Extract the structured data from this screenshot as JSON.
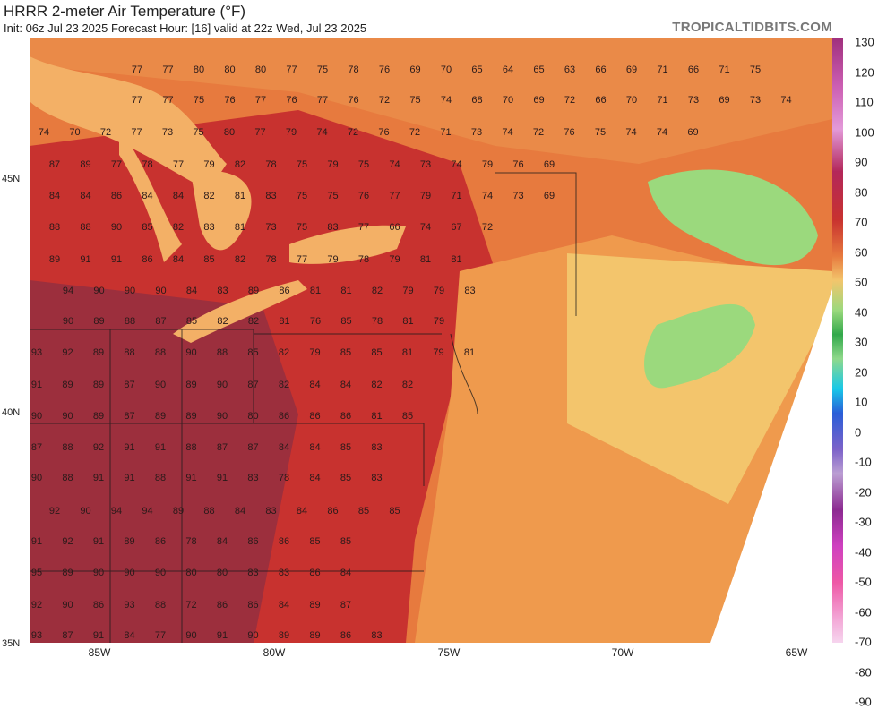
{
  "header": {
    "title": "HRRR 2-meter Air Temperature (°F)",
    "subtitle": "Init: 06z Jul 23 2025   Forecast Hour: [16]   valid at 22z Wed, Jul 23 2025",
    "brand": "TROPICALTIDBITS.COM"
  },
  "colorbar": {
    "labels": [
      "130",
      "120",
      "110",
      "100",
      "90",
      "80",
      "70",
      "60",
      "50",
      "40",
      "30",
      "20",
      "10",
      "0",
      "-10",
      "-20",
      "-30",
      "-40",
      "-50",
      "-60",
      "-70",
      "-80",
      "-90"
    ]
  },
  "axes": {
    "lat_labels": [
      "45N",
      "40N",
      "35N"
    ],
    "lon_labels": [
      "85W",
      "80W",
      "75W",
      "70W",
      "65W"
    ]
  },
  "station_values": {
    "rows": [
      [
        "77",
        "77",
        "80",
        "80",
        "80",
        "77",
        "75",
        "78",
        "76",
        "69",
        "70",
        "65",
        "64",
        "65",
        "63",
        "66",
        "69",
        "71",
        "66",
        "71",
        "75"
      ],
      [
        "77",
        "77",
        "75",
        "76",
        "77",
        "76",
        "77",
        "76",
        "72",
        "75",
        "74",
        "68",
        "70",
        "69",
        "72",
        "66",
        "70",
        "71",
        "73",
        "69",
        "73",
        "74"
      ],
      [
        "74",
        "70",
        "72",
        "77",
        "73",
        "75",
        "80",
        "77",
        "79",
        "74",
        "72",
        "76",
        "72",
        "71",
        "73",
        "74",
        "72",
        "76",
        "75",
        "74",
        "74",
        "69"
      ],
      [
        "87",
        "89",
        "77",
        "78",
        "77",
        "79",
        "82",
        "78",
        "75",
        "79",
        "75",
        "74",
        "73",
        "74",
        "79",
        "76",
        "69"
      ],
      [
        "84",
        "84",
        "86",
        "84",
        "84",
        "82",
        "81",
        "83",
        "75",
        "75",
        "76",
        "77",
        "79",
        "71",
        "74",
        "73",
        "69"
      ],
      [
        "88",
        "88",
        "90",
        "85",
        "82",
        "83",
        "81",
        "73",
        "75",
        "83",
        "77",
        "66",
        "74",
        "67",
        "72"
      ],
      [
        "89",
        "91",
        "91",
        "86",
        "84",
        "85",
        "82",
        "78",
        "77",
        "79",
        "78",
        "79",
        "81",
        "81"
      ],
      [
        "94",
        "90",
        "90",
        "90",
        "84",
        "83",
        "89",
        "86",
        "81",
        "81",
        "82",
        "79",
        "79",
        "83"
      ],
      [
        "90",
        "89",
        "88",
        "87",
        "85",
        "82",
        "82",
        "81",
        "76",
        "85",
        "78",
        "81",
        "79"
      ],
      [
        "93",
        "92",
        "89",
        "88",
        "88",
        "90",
        "88",
        "85",
        "82",
        "79",
        "85",
        "85",
        "81",
        "79",
        "81"
      ],
      [
        "91",
        "89",
        "89",
        "87",
        "90",
        "89",
        "90",
        "87",
        "82",
        "84",
        "84",
        "82",
        "82"
      ],
      [
        "90",
        "90",
        "89",
        "87",
        "89",
        "89",
        "90",
        "80",
        "86",
        "86",
        "86",
        "81",
        "85"
      ],
      [
        "87",
        "88",
        "92",
        "91",
        "91",
        "88",
        "87",
        "87",
        "84",
        "84",
        "85",
        "83"
      ],
      [
        "90",
        "88",
        "91",
        "91",
        "88",
        "91",
        "91",
        "83",
        "78",
        "84",
        "85",
        "83"
      ],
      [
        "92",
        "90",
        "94",
        "94",
        "89",
        "88",
        "84",
        "83",
        "84",
        "86",
        "85",
        "85"
      ],
      [
        "91",
        "92",
        "91",
        "89",
        "86",
        "78",
        "84",
        "86",
        "86",
        "85",
        "85"
      ],
      [
        "95",
        "89",
        "90",
        "90",
        "90",
        "80",
        "80",
        "83",
        "83",
        "86",
        "84"
      ],
      [
        "92",
        "90",
        "86",
        "93",
        "88",
        "72",
        "86",
        "86",
        "84",
        "89",
        "87"
      ],
      [
        "93",
        "87",
        "91",
        "84",
        "77",
        "90",
        "91",
        "90",
        "89",
        "89",
        "86",
        "83"
      ]
    ]
  },
  "colors": {
    "hot": "#8e3043",
    "warm": "#c8322f",
    "mild": "#e77a3e",
    "cool": "#f3c56c",
    "cold": "#31a84a"
  }
}
